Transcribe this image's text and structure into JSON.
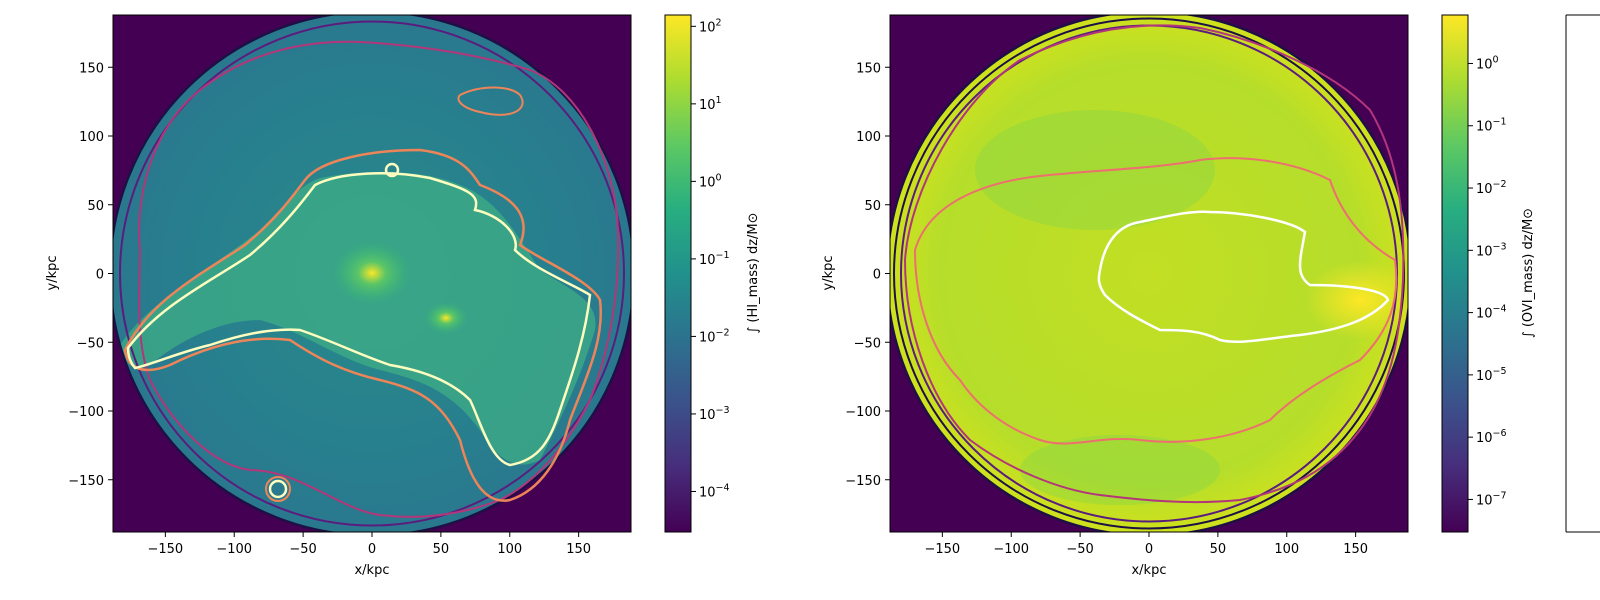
{
  "chart_data": [
    {
      "type": "heatmap",
      "xlabel": "x/kpc",
      "ylabel": "y/kpc",
      "xlim": [
        -188,
        188
      ],
      "ylim": [
        -188,
        188
      ],
      "xticks": [
        -150,
        -100,
        -50,
        0,
        50,
        100,
        150
      ],
      "yticks": [
        150,
        100,
        50,
        0,
        -50,
        -100,
        -150
      ],
      "xticklabels": [
        "−150",
        "−100",
        "−50",
        "0",
        "50",
        "100",
        "150"
      ],
      "yticklabels": [
        "150",
        "100",
        "50",
        "0",
        "−50",
        "−100",
        "−150"
      ],
      "colorbar_label": "∫ (HI_mass) dz/M⊙",
      "colorbar_scale": "log",
      "colorbar_range": [
        3e-05,
        140
      ],
      "colorbar_tick_exponents": [
        "2",
        "1",
        "0",
        "−1",
        "−2",
        "−3",
        "−4"
      ],
      "colormap": "viridis",
      "disk_radius_kpc": 188,
      "contour_colors": [
        "#1c1044",
        "#5a1d7e",
        "#b3367a",
        "#ee8558",
        "#fcfdbf"
      ],
      "hotspots": [
        [
          0,
          0
        ],
        [
          55,
          -33
        ]
      ]
    },
    {
      "type": "heatmap",
      "xlabel": "x/kpc",
      "ylabel": "y/kpc",
      "xlim": [
        -188,
        188
      ],
      "ylim": [
        -188,
        188
      ],
      "xticks": [
        -150,
        -100,
        -50,
        0,
        50,
        100,
        150
      ],
      "yticks": [
        150,
        100,
        50,
        0,
        -50,
        -100,
        -150
      ],
      "xticklabels": [
        "−150",
        "−100",
        "−50",
        "0",
        "50",
        "100",
        "150"
      ],
      "yticklabels": [
        "150",
        "100",
        "50",
        "0",
        "−50",
        "−100",
        "−150"
      ],
      "colorbar_label": "∫ (OVI_mass) dz/M⊙",
      "colorbar_scale": "log",
      "colorbar_range": [
        3e-08,
        6
      ],
      "colorbar_tick_exponents": [
        "0",
        "−1",
        "−2",
        "−3",
        "−4",
        "−5",
        "−6",
        "−7"
      ],
      "colormap": "viridis",
      "disk_radius_kpc": 188,
      "contour_colors": [
        "#1c1044",
        "#5a1d7e",
        "#b3367a",
        "#ee8558",
        "#fcfdbf"
      ],
      "hotspots": [
        [
          170,
          -20
        ]
      ]
    }
  ]
}
